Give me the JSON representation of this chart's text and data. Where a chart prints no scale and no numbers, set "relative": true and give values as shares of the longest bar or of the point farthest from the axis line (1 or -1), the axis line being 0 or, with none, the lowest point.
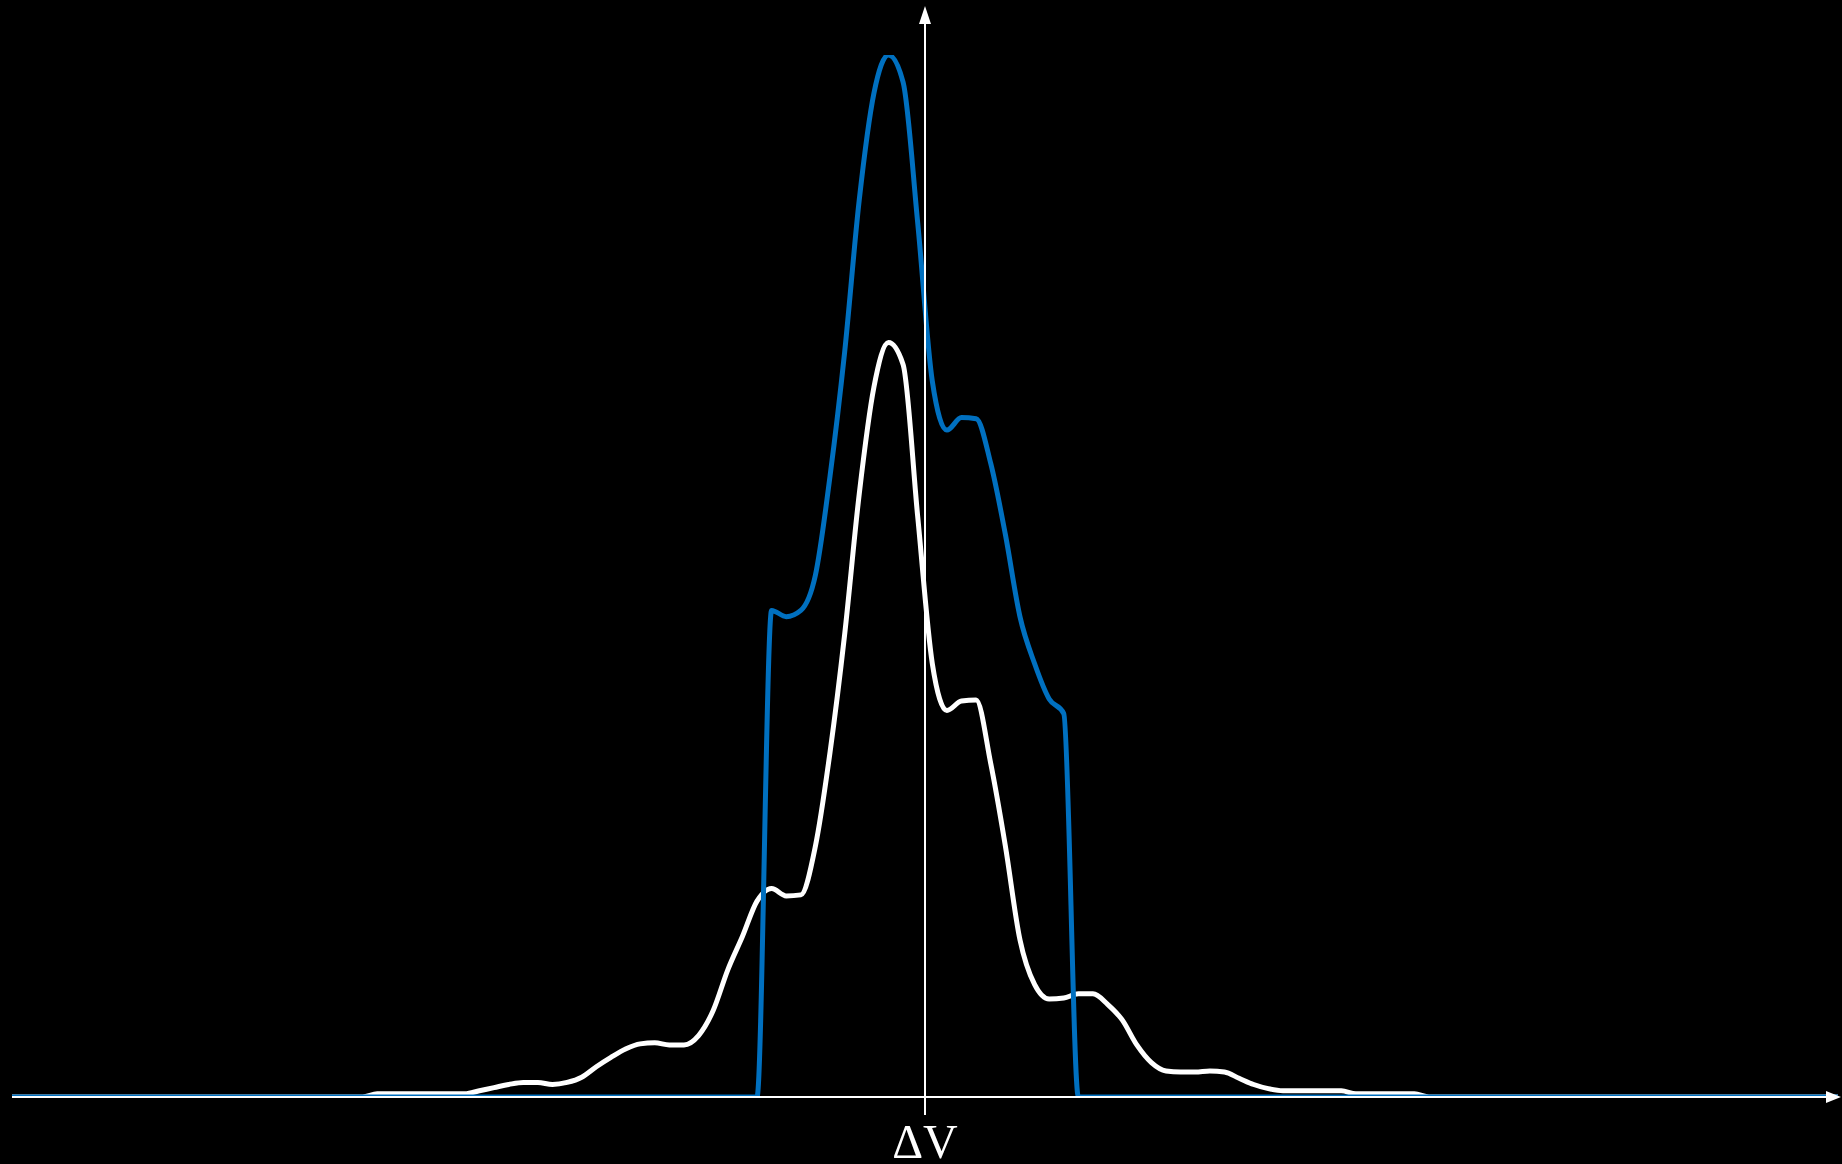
{
  "chart_data": {
    "type": "line",
    "relative": true,
    "xlabel": "ΔV",
    "marker": "none",
    "categories": [
      null,
      null,
      null,
      null,
      null,
      null,
      null,
      null,
      null,
      null,
      null,
      null,
      null,
      null,
      null,
      null,
      null,
      null,
      null,
      null,
      null,
      null,
      null,
      null,
      null,
      null,
      null,
      null,
      null,
      null,
      null,
      null,
      null,
      null,
      null,
      null,
      null,
      null,
      null,
      null,
      null,
      null,
      null,
      null,
      null,
      null,
      null,
      null,
      null,
      null,
      null,
      null,
      null,
      null,
      null,
      null,
      null,
      null,
      null,
      null,
      null,
      null,
      null,
      null,
      null,
      null,
      null,
      null,
      null,
      null,
      null,
      null,
      null,
      null,
      null,
      null,
      null,
      null,
      null,
      null,
      null,
      null,
      null,
      null,
      null,
      null,
      null,
      null,
      null,
      null,
      null,
      null,
      null,
      null,
      null,
      null,
      null,
      null,
      null,
      null,
      null,
      null,
      null,
      null,
      null,
      null,
      null,
      null,
      null,
      null,
      null,
      null,
      null,
      null,
      null,
      null,
      null,
      null,
      null,
      null,
      null,
      null,
      null,
      null,
      null,
      null
    ],
    "series": [
      {
        "color": "#ffffff",
        "values": [
          0,
          0,
          0,
          0,
          0,
          0,
          0,
          0,
          0,
          0,
          0,
          0,
          0,
          0,
          0,
          0,
          0,
          0,
          0,
          0,
          0,
          0,
          0,
          0,
          0,
          0.003,
          0.003,
          0.003,
          0.003,
          0.003,
          0.003,
          0.003,
          0.006,
          0.009,
          0.012,
          0.014,
          0.014,
          0.012,
          0.014,
          0.019,
          0.029,
          0.038,
          0.046,
          0.051,
          0.052,
          0.05,
          0.05,
          0.059,
          0.083,
          0.122,
          0.154,
          0.188,
          0.2,
          0.193,
          0.194,
          0.241,
          0.331,
          0.444,
          0.579,
          0.681,
          0.724,
          0.703,
          0.557,
          0.416,
          0.371,
          0.38,
          0.381,
          0.32,
          0.241,
          0.151,
          0.108,
          0.094,
          0.095,
          0.099,
          0.099,
          0.089,
          0.074,
          0.05,
          0.033,
          0.025,
          0.024,
          0.024,
          0.025,
          0.024,
          0.018,
          0.012,
          0.008,
          0.006,
          0.006,
          0.006,
          0.006,
          0.006,
          0.003,
          0.003,
          0.003,
          0.003,
          0.003,
          0,
          0,
          0,
          0,
          0,
          0,
          0,
          0,
          0,
          0,
          0,
          0,
          0,
          0,
          0,
          0,
          0,
          0,
          0,
          0,
          0,
          0,
          0,
          0,
          0,
          0,
          0,
          0,
          0
        ]
      },
      {
        "color": "#0070c0",
        "values": [
          0,
          0,
          0,
          0,
          0,
          0,
          0,
          0,
          0,
          0,
          0,
          0,
          0,
          0,
          0,
          0,
          0,
          0,
          0,
          0,
          0,
          0,
          0,
          0,
          0,
          0,
          0,
          0,
          0,
          0,
          0,
          0,
          0,
          0,
          0,
          0,
          0,
          0,
          0,
          0,
          0,
          0,
          0,
          0,
          0,
          0,
          0,
          0,
          0,
          0,
          0,
          0,
          0.467,
          0.461,
          0.467,
          0.501,
          0.596,
          0.715,
          0.861,
          0.963,
          1,
          0.974,
          0.839,
          0.687,
          0.64,
          0.652,
          0.651,
          0.608,
          0.54,
          0.461,
          0.416,
          0.382,
          0.368,
          0,
          0,
          0,
          0,
          0,
          0,
          0,
          0,
          0,
          0,
          0,
          0,
          0,
          0,
          0,
          0,
          0,
          0,
          0,
          0,
          0,
          0,
          0,
          0,
          0,
          0,
          0,
          0,
          0,
          0,
          0,
          0,
          0,
          0,
          0,
          0,
          0,
          0,
          0,
          0,
          0,
          0,
          0,
          0,
          0,
          0,
          0,
          0,
          0,
          0,
          0,
          0,
          0
        ]
      }
    ]
  }
}
